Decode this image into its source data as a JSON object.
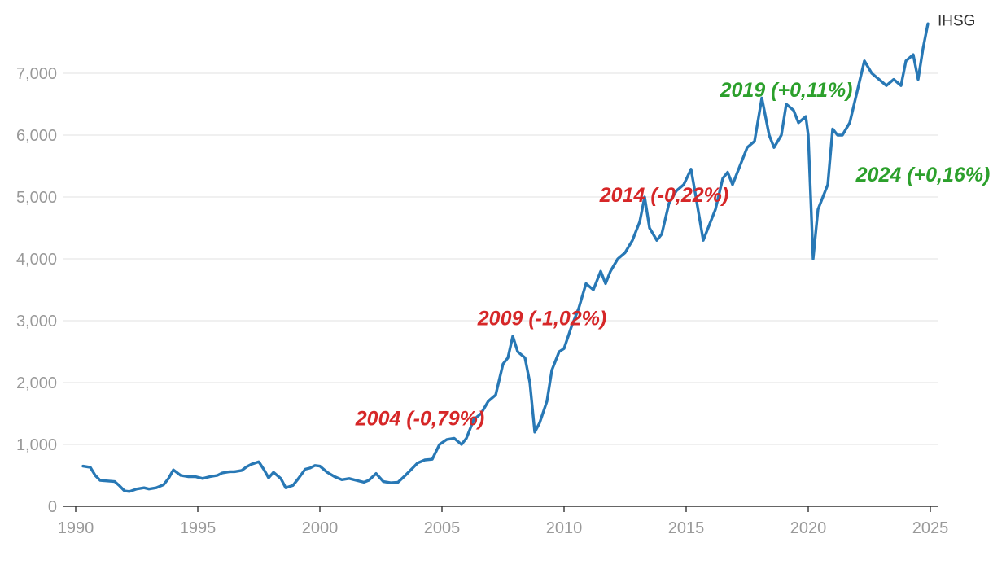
{
  "chart_data": {
    "type": "line",
    "title": "",
    "xlabel": "",
    "ylabel": "",
    "xlim": [
      1990,
      2025
    ],
    "ylim": [
      0,
      8000
    ],
    "grid": "horizontal",
    "x_ticks": [
      1990,
      1995,
      2000,
      2005,
      2010,
      2015,
      2020,
      2025
    ],
    "x_tick_labels": [
      "1990",
      "1995",
      "2000",
      "2005",
      "2010",
      "2015",
      "2020",
      "2025"
    ],
    "y_ticks": [
      0,
      1000,
      2000,
      3000,
      4000,
      5000,
      6000,
      7000
    ],
    "y_tick_labels": [
      "0",
      "1,000",
      "2,000",
      "3,000",
      "4,000",
      "5,000",
      "6,000",
      "7,000"
    ],
    "series": [
      {
        "name": "IHSG",
        "color": "#2878b5",
        "points": [
          [
            1990.3,
            650
          ],
          [
            1990.6,
            630
          ],
          [
            1990.8,
            500
          ],
          [
            1991.0,
            420
          ],
          [
            1991.3,
            410
          ],
          [
            1991.6,
            400
          ],
          [
            1991.8,
            330
          ],
          [
            1992.0,
            250
          ],
          [
            1992.2,
            240
          ],
          [
            1992.5,
            280
          ],
          [
            1992.8,
            300
          ],
          [
            1993.0,
            280
          ],
          [
            1993.3,
            300
          ],
          [
            1993.6,
            350
          ],
          [
            1993.8,
            450
          ],
          [
            1994.0,
            590
          ],
          [
            1994.3,
            500
          ],
          [
            1994.6,
            480
          ],
          [
            1994.9,
            480
          ],
          [
            1995.2,
            450
          ],
          [
            1995.5,
            480
          ],
          [
            1995.8,
            500
          ],
          [
            1996.0,
            540
          ],
          [
            1996.3,
            560
          ],
          [
            1996.5,
            560
          ],
          [
            1996.8,
            580
          ],
          [
            1997.0,
            640
          ],
          [
            1997.2,
            680
          ],
          [
            1997.5,
            720
          ],
          [
            1997.7,
            600
          ],
          [
            1997.9,
            460
          ],
          [
            1998.1,
            550
          ],
          [
            1998.4,
            450
          ],
          [
            1998.6,
            300
          ],
          [
            1998.9,
            340
          ],
          [
            1999.1,
            440
          ],
          [
            1999.4,
            600
          ],
          [
            1999.6,
            620
          ],
          [
            1999.8,
            660
          ],
          [
            2000.0,
            650
          ],
          [
            2000.3,
            550
          ],
          [
            2000.6,
            480
          ],
          [
            2000.9,
            430
          ],
          [
            2001.2,
            450
          ],
          [
            2001.5,
            420
          ],
          [
            2001.8,
            390
          ],
          [
            2002.0,
            420
          ],
          [
            2002.3,
            530
          ],
          [
            2002.6,
            400
          ],
          [
            2002.9,
            380
          ],
          [
            2003.2,
            390
          ],
          [
            2003.5,
            500
          ],
          [
            2003.8,
            620
          ],
          [
            2004.0,
            700
          ],
          [
            2004.3,
            750
          ],
          [
            2004.6,
            760
          ],
          [
            2004.9,
            1000
          ],
          [
            2005.2,
            1080
          ],
          [
            2005.5,
            1100
          ],
          [
            2005.8,
            1000
          ],
          [
            2006.0,
            1100
          ],
          [
            2006.3,
            1400
          ],
          [
            2006.6,
            1500
          ],
          [
            2006.9,
            1700
          ],
          [
            2007.2,
            1800
          ],
          [
            2007.5,
            2300
          ],
          [
            2007.7,
            2400
          ],
          [
            2007.9,
            2750
          ],
          [
            2008.1,
            2500
          ],
          [
            2008.4,
            2400
          ],
          [
            2008.6,
            2000
          ],
          [
            2008.8,
            1200
          ],
          [
            2009.0,
            1350
          ],
          [
            2009.3,
            1700
          ],
          [
            2009.5,
            2200
          ],
          [
            2009.8,
            2500
          ],
          [
            2010.0,
            2550
          ],
          [
            2010.3,
            2900
          ],
          [
            2010.6,
            3200
          ],
          [
            2010.9,
            3600
          ],
          [
            2011.2,
            3500
          ],
          [
            2011.5,
            3800
          ],
          [
            2011.7,
            3600
          ],
          [
            2011.9,
            3800
          ],
          [
            2012.2,
            4000
          ],
          [
            2012.5,
            4100
          ],
          [
            2012.8,
            4300
          ],
          [
            2013.1,
            4600
          ],
          [
            2013.3,
            5000
          ],
          [
            2013.5,
            4500
          ],
          [
            2013.8,
            4300
          ],
          [
            2014.0,
            4400
          ],
          [
            2014.3,
            4900
          ],
          [
            2014.6,
            5100
          ],
          [
            2014.9,
            5200
          ],
          [
            2015.2,
            5450
          ],
          [
            2015.4,
            5000
          ],
          [
            2015.7,
            4300
          ],
          [
            2015.9,
            4500
          ],
          [
            2016.2,
            4800
          ],
          [
            2016.5,
            5300
          ],
          [
            2016.7,
            5400
          ],
          [
            2016.9,
            5200
          ],
          [
            2017.2,
            5500
          ],
          [
            2017.5,
            5800
          ],
          [
            2017.8,
            5900
          ],
          [
            2018.1,
            6600
          ],
          [
            2018.4,
            6000
          ],
          [
            2018.6,
            5800
          ],
          [
            2018.9,
            6000
          ],
          [
            2019.1,
            6500
          ],
          [
            2019.4,
            6400
          ],
          [
            2019.6,
            6200
          ],
          [
            2019.9,
            6300
          ],
          [
            2020.0,
            6000
          ],
          [
            2020.2,
            4000
          ],
          [
            2020.4,
            4800
          ],
          [
            2020.6,
            5000
          ],
          [
            2020.8,
            5200
          ],
          [
            2021.0,
            6100
          ],
          [
            2021.2,
            6000
          ],
          [
            2021.4,
            6000
          ],
          [
            2021.7,
            6200
          ],
          [
            2022.0,
            6700
          ],
          [
            2022.3,
            7200
          ],
          [
            2022.6,
            7000
          ],
          [
            2022.9,
            6900
          ],
          [
            2023.2,
            6800
          ],
          [
            2023.5,
            6900
          ],
          [
            2023.8,
            6800
          ],
          [
            2024.0,
            7200
          ],
          [
            2024.3,
            7300
          ],
          [
            2024.5,
            6900
          ],
          [
            2024.7,
            7400
          ],
          [
            2024.9,
            7800
          ]
        ]
      }
    ],
    "annotations": [
      {
        "text": "2004 (-0,79%)",
        "x": 2004.1,
        "y": 1310,
        "color": "#d62728"
      },
      {
        "text": "2009 (-1,02%)",
        "x": 2009.1,
        "y": 2930,
        "color": "#d62728"
      },
      {
        "text": "2014 (-0,22%)",
        "x": 2014.1,
        "y": 4920,
        "color": "#d62728"
      },
      {
        "text": "2019 (+0,11%)",
        "x": 2019.1,
        "y": 6620,
        "color": "#2ca02c"
      },
      {
        "text": "2024 (+0,16%)",
        "x": 2024.7,
        "y": 5250,
        "color": "#2ca02c"
      }
    ],
    "series_label": {
      "text": "IHSG",
      "x": 2025.3,
      "y": 7770
    }
  }
}
